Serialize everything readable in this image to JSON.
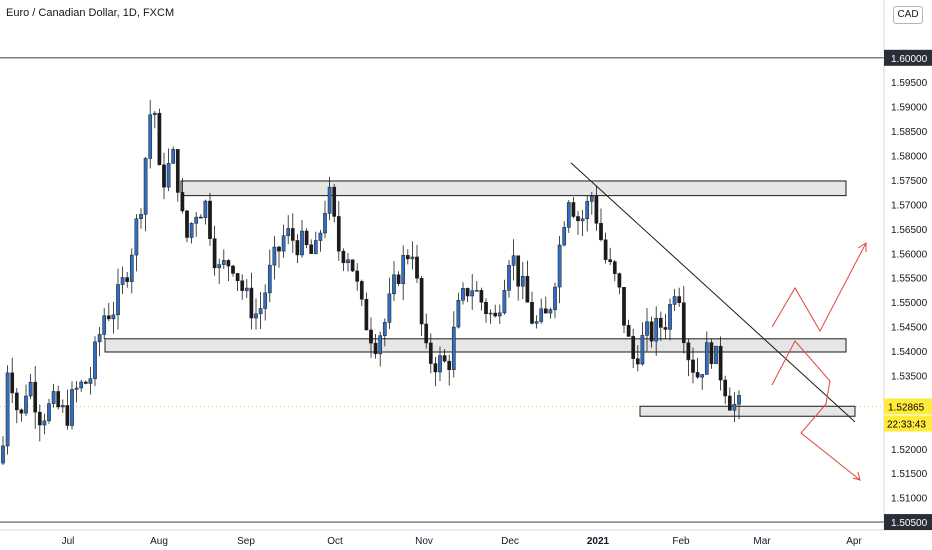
{
  "title": "Euro / Canadian Dollar, 1D, FXCM",
  "currency_button": "CAD",
  "chart_data": {
    "type": "candlestick",
    "symbol": "EURCAD",
    "timeframe": "1D",
    "source": "FXCM",
    "x_labels": [
      "Jul",
      "Aug",
      "Sep",
      "Oct",
      "Nov",
      "Dec",
      "2021",
      "Feb",
      "Mar",
      "Apr"
    ],
    "y_labels": [
      "1.50500",
      "1.51000",
      "1.51500",
      "1.52000",
      "1.52865",
      "1.53500",
      "1.54000",
      "1.54500",
      "1.55000",
      "1.55500",
      "1.56000",
      "1.56500",
      "1.57000",
      "1.57500",
      "1.58000",
      "1.58500",
      "1.59000",
      "1.59500",
      "1.60000"
    ],
    "ylim": [
      1.5044,
      1.6061
    ],
    "current_price": "1.52865",
    "countdown": "22:33:43",
    "horizontal_lines": [
      "1.60000",
      "1.50500"
    ],
    "zones": [
      {
        "from_date": "Aug",
        "to_date": "Mar",
        "low": 1.5718,
        "high": 1.5748
      },
      {
        "from_date": "Jul",
        "to_date": "Mar",
        "low": 1.5398,
        "high": 1.5425
      },
      {
        "from_date": "Jan",
        "to_date": "Mar",
        "low": 1.527,
        "high": 1.5287
      }
    ],
    "trendline": {
      "start": {
        "date": "Dec",
        "price": 1.5785
      },
      "end": {
        "date": "Mar",
        "price": 1.526
      }
    },
    "colors": {
      "up": "#2f6ec2",
      "down": "#1b1b1b",
      "projection": "#e0463c",
      "price_tag": "#ffeb3b",
      "zone_fill": "#e6e6e6"
    }
  }
}
